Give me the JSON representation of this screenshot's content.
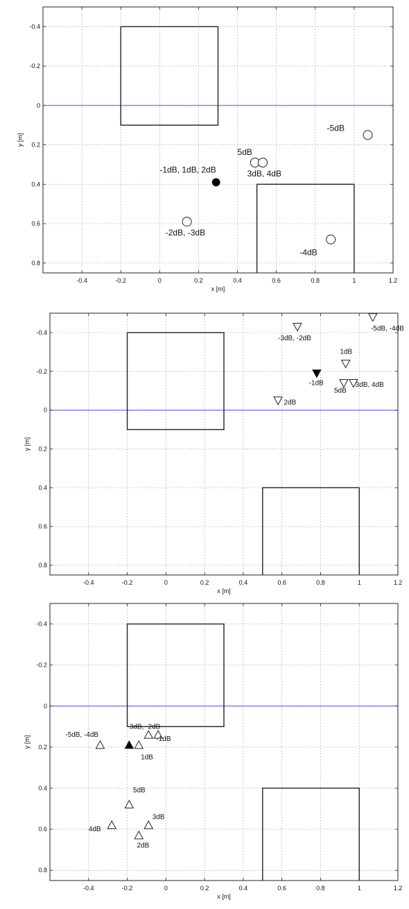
{
  "chart_data": [
    {
      "type": "scatter",
      "title": "",
      "xlabel": "x [m]",
      "ylabel": "y [m]",
      "xlim": [
        -0.6,
        1.2
      ],
      "ylim": [
        -0.5,
        0.85
      ],
      "y_inverted": true,
      "grid": true,
      "xticks": [
        -0.4,
        -0.2,
        0,
        0.2,
        0.4,
        0.6,
        0.8,
        1,
        1.2
      ],
      "xtick_labels": [
        "-0.4",
        "-0.2",
        "0",
        "0.2",
        "0.4",
        "0.6",
        "0.8",
        "1",
        "1.2"
      ],
      "yticks": [
        -0.4,
        -0.2,
        0,
        0.2,
        0.4,
        0.6,
        0.8
      ],
      "ytick_labels": [
        "-0.4",
        "-0.2",
        "0",
        "0.2",
        "0.4",
        "0.6",
        "0.8"
      ],
      "reference_line": {
        "y": 0,
        "color": "#4a4aff"
      },
      "rectangles": [
        {
          "x0": -0.2,
          "x1": 0.3,
          "y0": -0.4,
          "y1": 0.1
        },
        {
          "x0": 0.5,
          "x1": 1.0,
          "y0": 0.4,
          "y1": 0.9
        }
      ],
      "points": [
        {
          "x": 0.29,
          "y": 0.39,
          "marker": "circle",
          "filled": true
        },
        {
          "x": 1.07,
          "y": 0.15,
          "marker": "circle",
          "filled": false
        },
        {
          "x": 0.49,
          "y": 0.29,
          "marker": "circle",
          "filled": false
        },
        {
          "x": 0.53,
          "y": 0.29,
          "marker": "circle",
          "filled": false
        },
        {
          "x": 0.14,
          "y": 0.59,
          "marker": "circle",
          "filled": false
        },
        {
          "x": 0.88,
          "y": 0.68,
          "marker": "circle",
          "filled": false
        }
      ],
      "annotations": [
        {
          "text": "-1dB, 1dB, 2dB",
          "x": 0.0,
          "y": 0.34
        },
        {
          "text": "-5dB",
          "x": 0.86,
          "y": 0.13
        },
        {
          "text": "5dB",
          "x": 0.4,
          "y": 0.25
        },
        {
          "text": "3dB, 4dB",
          "x": 0.45,
          "y": 0.36
        },
        {
          "text": "-2dB, -3dB",
          "x": 0.03,
          "y": 0.66
        },
        {
          "text": "-4dB",
          "x": 0.72,
          "y": 0.76
        }
      ]
    },
    {
      "type": "scatter",
      "title": "",
      "xlabel": "x [m]",
      "ylabel": "y [m]",
      "xlim": [
        -0.6,
        1.2
      ],
      "ylim": [
        -0.5,
        0.85
      ],
      "y_inverted": true,
      "grid": true,
      "xticks": [
        -0.4,
        -0.2,
        0,
        0.2,
        0.4,
        0.6,
        0.8,
        1,
        1.2
      ],
      "xtick_labels": [
        "-0.4",
        "-0.2",
        "0",
        "0.2",
        "0.4",
        "0.6",
        "0.8",
        "1",
        "1.2"
      ],
      "yticks": [
        -0.4,
        -0.2,
        0,
        0.2,
        0.4,
        0.6,
        0.8
      ],
      "ytick_labels": [
        "-0.4",
        "-0.2",
        "0",
        "0.2",
        "0.4",
        "0.6",
        "0.8"
      ],
      "reference_line": {
        "y": 0,
        "color": "#4a4aff"
      },
      "rectangles": [
        {
          "x0": -0.2,
          "x1": 0.3,
          "y0": -0.4,
          "y1": 0.1
        },
        {
          "x0": 0.5,
          "x1": 1.0,
          "y0": 0.4,
          "y1": 0.9
        }
      ],
      "points": [
        {
          "x": 1.07,
          "y": -0.48,
          "marker": "triangle-down",
          "filled": false
        },
        {
          "x": 0.68,
          "y": -0.43,
          "marker": "triangle-down",
          "filled": false
        },
        {
          "x": 0.93,
          "y": -0.24,
          "marker": "triangle-down",
          "filled": false
        },
        {
          "x": 0.78,
          "y": -0.19,
          "marker": "triangle-down",
          "filled": true
        },
        {
          "x": 0.92,
          "y": -0.14,
          "marker": "triangle-down",
          "filled": false
        },
        {
          "x": 0.97,
          "y": -0.14,
          "marker": "triangle-down",
          "filled": false
        },
        {
          "x": 0.58,
          "y": -0.05,
          "marker": "triangle-down",
          "filled": false
        }
      ],
      "annotations": [
        {
          "text": "-5dB, -4dB",
          "x": 1.06,
          "y": -0.41
        },
        {
          "text": "-3dB, -2dB",
          "x": 0.58,
          "y": -0.36
        },
        {
          "text": "1dB",
          "x": 0.9,
          "y": -0.29
        },
        {
          "text": "-1dB",
          "x": 0.74,
          "y": -0.13
        },
        {
          "text": "5dB",
          "x": 0.87,
          "y": -0.09
        },
        {
          "text": "3dB, 4dB",
          "x": 0.98,
          "y": -0.12
        },
        {
          "text": "2dB",
          "x": 0.61,
          "y": -0.03
        }
      ]
    },
    {
      "type": "scatter",
      "title": "",
      "xlabel": "x [m]",
      "ylabel": "y [m]",
      "xlim": [
        -0.6,
        1.2
      ],
      "ylim": [
        -0.5,
        0.85
      ],
      "y_inverted": true,
      "grid": true,
      "xticks": [
        -0.4,
        -0.2,
        0,
        0.2,
        0.4,
        0.6,
        0.8,
        1,
        1.2
      ],
      "xtick_labels": [
        "-0.4",
        "-0.2",
        "0",
        "0.2",
        "0.4",
        "0.6",
        "0.8",
        "1",
        "1.2"
      ],
      "yticks": [
        -0.4,
        -0.2,
        0,
        0.2,
        0.4,
        0.6,
        0.8
      ],
      "ytick_labels": [
        "-0.4",
        "-0.2",
        "0",
        "0.2",
        "0.4",
        "0.6",
        "0.8"
      ],
      "reference_line": {
        "y": 0,
        "color": "#4a4aff"
      },
      "rectangles": [
        {
          "x0": -0.2,
          "x1": 0.3,
          "y0": -0.4,
          "y1": 0.1
        },
        {
          "x0": 0.5,
          "x1": 1.0,
          "y0": 0.4,
          "y1": 0.9
        }
      ],
      "points": [
        {
          "x": -0.34,
          "y": 0.19,
          "marker": "triangle-up",
          "filled": false
        },
        {
          "x": -0.19,
          "y": 0.19,
          "marker": "triangle-up",
          "filled": true
        },
        {
          "x": -0.14,
          "y": 0.19,
          "marker": "triangle-up",
          "filled": false
        },
        {
          "x": -0.09,
          "y": 0.14,
          "marker": "triangle-up",
          "filled": false
        },
        {
          "x": -0.04,
          "y": 0.14,
          "marker": "triangle-up",
          "filled": false
        },
        {
          "x": -0.19,
          "y": 0.48,
          "marker": "triangle-up",
          "filled": false
        },
        {
          "x": -0.28,
          "y": 0.58,
          "marker": "triangle-up",
          "filled": false
        },
        {
          "x": -0.09,
          "y": 0.58,
          "marker": "triangle-up",
          "filled": false
        },
        {
          "x": -0.14,
          "y": 0.63,
          "marker": "triangle-up",
          "filled": false
        }
      ],
      "annotations": [
        {
          "text": "-5dB, -4dB",
          "x": -0.52,
          "y": 0.15
        },
        {
          "text": "-3dB, -2dB",
          "x": -0.2,
          "y": 0.11
        },
        {
          "text": "-1dB",
          "x": -0.05,
          "y": 0.17
        },
        {
          "text": "1dB",
          "x": -0.13,
          "y": 0.26
        },
        {
          "text": "5dB",
          "x": -0.17,
          "y": 0.42
        },
        {
          "text": "3dB",
          "x": -0.07,
          "y": 0.55
        },
        {
          "text": "4dB",
          "x": -0.4,
          "y": 0.61
        },
        {
          "text": "2dB",
          "x": -0.15,
          "y": 0.69
        }
      ]
    }
  ]
}
